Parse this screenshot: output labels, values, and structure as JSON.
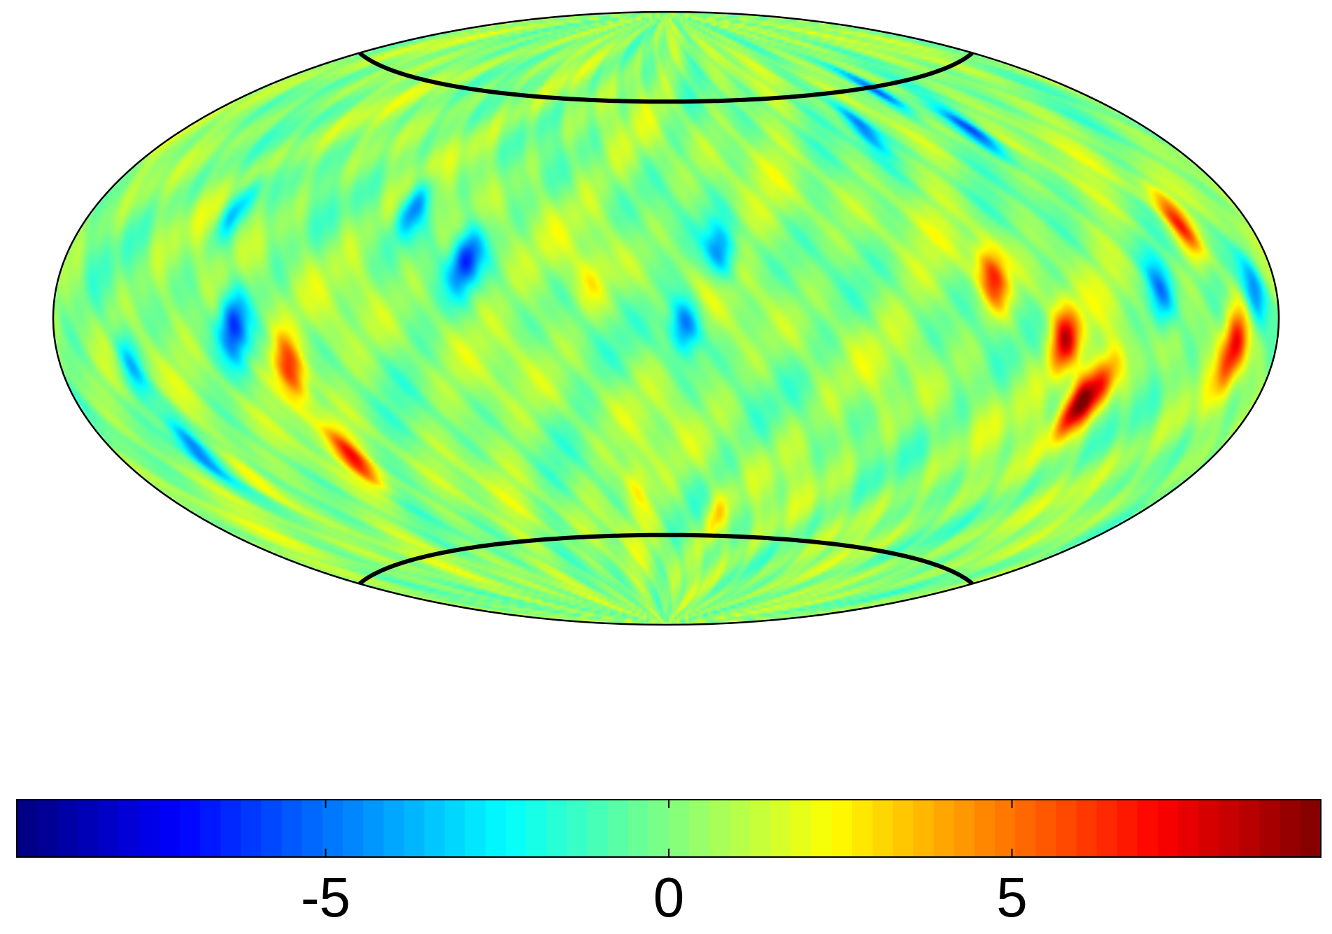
{
  "chart_data": {
    "type": "heatmap",
    "projection": "hammer-aitoff",
    "colormap": "jet",
    "color_range": [
      -9.5,
      9.5
    ],
    "colorbar": {
      "placement": "bottom",
      "ticks": [
        -5,
        0,
        5
      ],
      "tick_labels": [
        "-5",
        "0",
        "5"
      ]
    },
    "field": {
      "background_value": 0.3,
      "features": [
        {
          "lon": -150,
          "lat": -28,
          "value": -6.0
        },
        {
          "lon": -155,
          "lat": -10,
          "value": -4.0
        },
        {
          "lon": -130,
          "lat": 25,
          "value": -4.0
        },
        {
          "lon": -120,
          "lat": -2,
          "value": -5.5
        },
        {
          "lon": -105,
          "lat": -12,
          "value": 6.5
        },
        {
          "lon": -100,
          "lat": -35,
          "value": 5.5
        },
        {
          "lon": -75,
          "lat": 28,
          "value": -5.0
        },
        {
          "lon": -55,
          "lat": 15,
          "value": -6.0
        },
        {
          "lon": -140,
          "lat": -35,
          "value": 3.5
        },
        {
          "lon": 5,
          "lat": -2,
          "value": -6.0
        },
        {
          "lon": 15,
          "lat": 18,
          "value": -5.0
        },
        {
          "lon": 75,
          "lat": 50,
          "value": -5.5
        },
        {
          "lon": 100,
          "lat": 58,
          "value": -6.5
        },
        {
          "lon": 115,
          "lat": 46,
          "value": -5.5
        },
        {
          "lon": 90,
          "lat": 10,
          "value": 6.5
        },
        {
          "lon": 110,
          "lat": -5,
          "value": 7.0
        },
        {
          "lon": 120,
          "lat": -20,
          "value": 8.5
        },
        {
          "lon": 125,
          "lat": -15,
          "value": 6.0
        },
        {
          "lon": 155,
          "lat": 20,
          "value": 6.0
        },
        {
          "lon": 165,
          "lat": -5,
          "value": 6.5
        },
        {
          "lon": 172,
          "lat": 5,
          "value": -5.0
        },
        {
          "lon": 140,
          "lat": 5,
          "value": -4.5
        },
        {
          "lon": -20,
          "lat": 10,
          "value": 2.0
        },
        {
          "lon": -10,
          "lat": -45,
          "value": 2.5
        },
        {
          "lon": 20,
          "lat": -55,
          "value": 3.0
        }
      ]
    },
    "overlays": [
      {
        "kind": "latitude-circle",
        "lat": 60
      },
      {
        "kind": "latitude-circle",
        "lat": -60
      }
    ],
    "title": "",
    "xlabel": "",
    "ylabel": "",
    "grid": false,
    "legend": "none"
  }
}
